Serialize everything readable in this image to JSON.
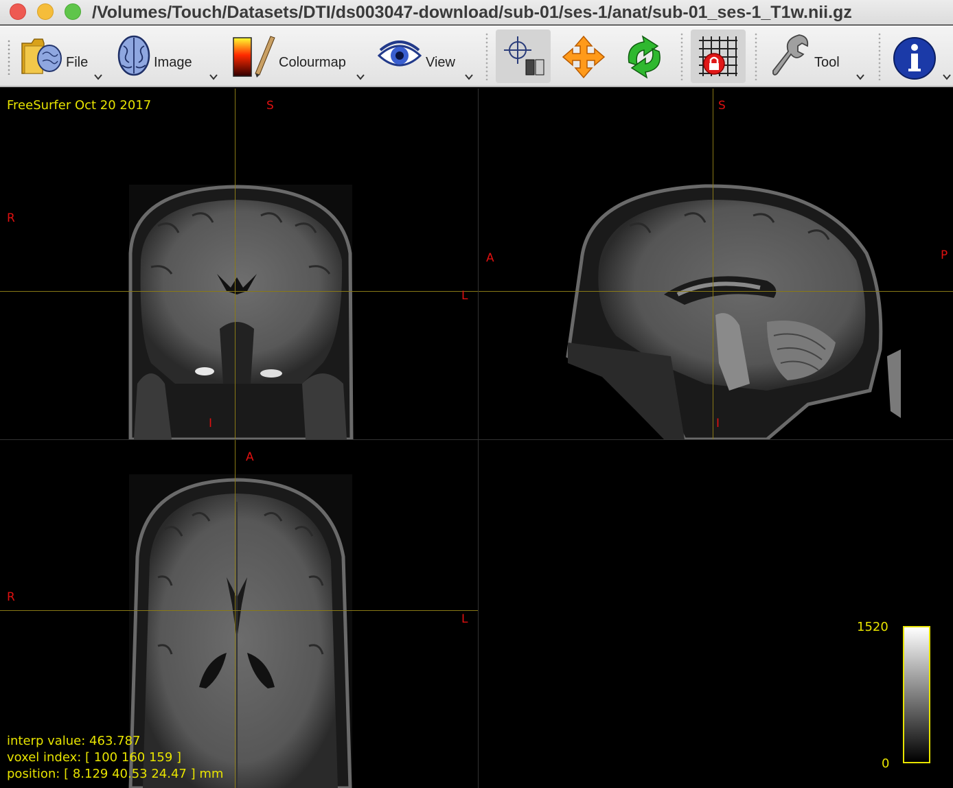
{
  "window": {
    "title": "/Volumes/Touch/Datasets/DTI/ds003047-download/sub-01/ses-1/anat/sub-01_ses-1_T1w.nii.gz"
  },
  "toolbar": {
    "file_label": "File",
    "image_label": "Image",
    "colourmap_label": "Colourmap",
    "view_label": "View",
    "tool_label": "Tool"
  },
  "viewer": {
    "version_text": "FreeSurfer Oct 20 2017",
    "coronal": {
      "top": "S",
      "bottom": "I",
      "left": "R",
      "right": "L"
    },
    "sagittal": {
      "top": "S",
      "bottom": "I",
      "left": "A",
      "right": "P"
    },
    "axial": {
      "top": "A",
      "left": "R",
      "right": "L"
    },
    "info": {
      "interp": "interp value: 463.787",
      "voxel": "voxel index: [ 100 160 159 ]",
      "position": "position: [ 8.129 40.53 24.47 ] mm"
    },
    "colorbar": {
      "max": "1520",
      "min": "0"
    }
  },
  "colors": {
    "orientation_label": "#e01010",
    "overlay_text": "#e8e400",
    "crosshair": "#8a7a16"
  }
}
